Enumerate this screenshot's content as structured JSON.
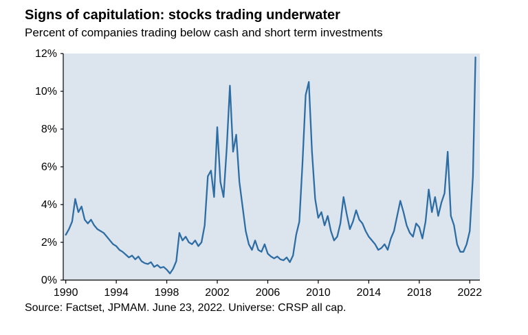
{
  "page": {
    "title": "Signs of capitulation: stocks trading underwater",
    "subtitle": "Percent of companies trading below cash and short term investments",
    "source": "Source: Factset, JPMAM. June 23, 2022. Universe: CRSP all cap."
  },
  "chart_data": {
    "type": "line",
    "title": "Signs of capitulation: stocks trading underwater",
    "subtitle": "Percent of companies trading below cash and short term investments",
    "xlabel": "",
    "ylabel": "Percent of companies trading below cash and short term investments (%)",
    "xlim": [
      1989.8,
      2022.8
    ],
    "ylim": [
      0,
      12
    ],
    "yticks": [
      0,
      2,
      4,
      6,
      8,
      10,
      12
    ],
    "ytick_suffix": "%",
    "xticks": [
      1990,
      1994,
      1998,
      2002,
      2006,
      2010,
      2014,
      2018,
      2022
    ],
    "grid": false,
    "legend": "none",
    "line_color": "#2e6da4",
    "plot_bg": "#dce4ee",
    "series": [
      {
        "name": "Percent of companies trading below cash and short term investments",
        "points": [
          [
            1990.0,
            2.4
          ],
          [
            1990.25,
            2.7
          ],
          [
            1990.5,
            3.1
          ],
          [
            1990.75,
            4.3
          ],
          [
            1991.0,
            3.6
          ],
          [
            1991.25,
            3.9
          ],
          [
            1991.5,
            3.2
          ],
          [
            1991.75,
            3.0
          ],
          [
            1992.0,
            3.2
          ],
          [
            1992.25,
            2.9
          ],
          [
            1992.5,
            2.7
          ],
          [
            1992.75,
            2.6
          ],
          [
            1993.0,
            2.5
          ],
          [
            1993.25,
            2.3
          ],
          [
            1993.5,
            2.1
          ],
          [
            1993.75,
            1.9
          ],
          [
            1994.0,
            1.8
          ],
          [
            1994.25,
            1.6
          ],
          [
            1994.5,
            1.5
          ],
          [
            1994.75,
            1.35
          ],
          [
            1995.0,
            1.2
          ],
          [
            1995.25,
            1.3
          ],
          [
            1995.5,
            1.1
          ],
          [
            1995.75,
            1.25
          ],
          [
            1996.0,
            1.0
          ],
          [
            1996.25,
            0.9
          ],
          [
            1996.5,
            0.85
          ],
          [
            1996.75,
            0.95
          ],
          [
            1997.0,
            0.7
          ],
          [
            1997.25,
            0.8
          ],
          [
            1997.5,
            0.65
          ],
          [
            1997.75,
            0.7
          ],
          [
            1998.0,
            0.55
          ],
          [
            1998.25,
            0.35
          ],
          [
            1998.5,
            0.6
          ],
          [
            1998.75,
            1.0
          ],
          [
            1999.0,
            2.5
          ],
          [
            1999.25,
            2.1
          ],
          [
            1999.5,
            2.3
          ],
          [
            1999.75,
            2.0
          ],
          [
            2000.0,
            1.9
          ],
          [
            2000.25,
            2.1
          ],
          [
            2000.5,
            1.8
          ],
          [
            2000.75,
            2.0
          ],
          [
            2001.0,
            2.9
          ],
          [
            2001.25,
            5.5
          ],
          [
            2001.5,
            5.8
          ],
          [
            2001.75,
            4.4
          ],
          [
            2002.0,
            8.1
          ],
          [
            2002.25,
            5.2
          ],
          [
            2002.5,
            4.4
          ],
          [
            2002.75,
            7.0
          ],
          [
            2003.0,
            10.3
          ],
          [
            2003.25,
            6.8
          ],
          [
            2003.5,
            7.7
          ],
          [
            2003.75,
            5.2
          ],
          [
            2004.0,
            3.9
          ],
          [
            2004.25,
            2.6
          ],
          [
            2004.5,
            1.9
          ],
          [
            2004.75,
            1.6
          ],
          [
            2005.0,
            2.1
          ],
          [
            2005.25,
            1.6
          ],
          [
            2005.5,
            1.5
          ],
          [
            2005.75,
            1.9
          ],
          [
            2006.0,
            1.4
          ],
          [
            2006.25,
            1.25
          ],
          [
            2006.5,
            1.15
          ],
          [
            2006.75,
            1.25
          ],
          [
            2007.0,
            1.1
          ],
          [
            2007.25,
            1.05
          ],
          [
            2007.5,
            1.2
          ],
          [
            2007.75,
            0.95
          ],
          [
            2008.0,
            1.3
          ],
          [
            2008.25,
            2.4
          ],
          [
            2008.5,
            3.1
          ],
          [
            2008.75,
            6.2
          ],
          [
            2009.0,
            9.8
          ],
          [
            2009.25,
            10.5
          ],
          [
            2009.5,
            6.8
          ],
          [
            2009.75,
            4.3
          ],
          [
            2010.0,
            3.3
          ],
          [
            2010.25,
            3.6
          ],
          [
            2010.5,
            2.9
          ],
          [
            2010.75,
            3.4
          ],
          [
            2011.0,
            2.6
          ],
          [
            2011.25,
            2.1
          ],
          [
            2011.5,
            2.3
          ],
          [
            2011.75,
            3.0
          ],
          [
            2012.0,
            4.4
          ],
          [
            2012.25,
            3.5
          ],
          [
            2012.5,
            2.7
          ],
          [
            2012.75,
            3.1
          ],
          [
            2013.0,
            3.7
          ],
          [
            2013.25,
            3.2
          ],
          [
            2013.5,
            3.0
          ],
          [
            2013.75,
            2.6
          ],
          [
            2014.0,
            2.3
          ],
          [
            2014.25,
            2.1
          ],
          [
            2014.5,
            1.9
          ],
          [
            2014.75,
            1.6
          ],
          [
            2015.0,
            1.7
          ],
          [
            2015.25,
            1.9
          ],
          [
            2015.5,
            1.6
          ],
          [
            2015.75,
            2.2
          ],
          [
            2016.0,
            2.6
          ],
          [
            2016.25,
            3.4
          ],
          [
            2016.5,
            4.2
          ],
          [
            2016.75,
            3.6
          ],
          [
            2017.0,
            2.9
          ],
          [
            2017.25,
            2.5
          ],
          [
            2017.5,
            2.3
          ],
          [
            2017.75,
            3.0
          ],
          [
            2018.0,
            2.8
          ],
          [
            2018.25,
            2.2
          ],
          [
            2018.5,
            3.1
          ],
          [
            2018.75,
            4.8
          ],
          [
            2019.0,
            3.6
          ],
          [
            2019.25,
            4.4
          ],
          [
            2019.5,
            3.4
          ],
          [
            2019.75,
            4.1
          ],
          [
            2020.0,
            4.6
          ],
          [
            2020.25,
            6.8
          ],
          [
            2020.5,
            3.4
          ],
          [
            2020.75,
            2.9
          ],
          [
            2021.0,
            1.9
          ],
          [
            2021.25,
            1.5
          ],
          [
            2021.5,
            1.5
          ],
          [
            2021.75,
            1.9
          ],
          [
            2022.0,
            2.6
          ],
          [
            2022.25,
            5.5
          ],
          [
            2022.45,
            11.8
          ]
        ]
      }
    ]
  }
}
